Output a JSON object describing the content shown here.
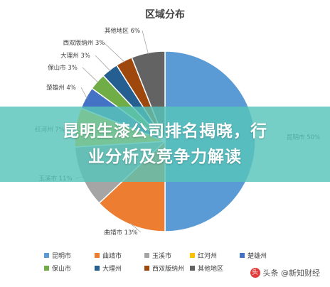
{
  "chart_data": {
    "type": "pie",
    "title": "区域分布",
    "slices": [
      {
        "name": "昆明市",
        "label": "昆明市 50%",
        "value": 50,
        "color": "#5b9bd5"
      },
      {
        "name": "曲靖市",
        "label": "曲靖市 13%",
        "value": 13,
        "color": "#ed7d31"
      },
      {
        "name": "玉溪市",
        "label": "玉溪市 11%",
        "value": 11,
        "color": "#a5a5a5"
      },
      {
        "name": "红河州",
        "label": "红河州 7%",
        "value": 7,
        "color": "#ffc000"
      },
      {
        "name": "楚雄州",
        "label": "楚雄州 4%",
        "value": 4,
        "color": "#4472c4"
      },
      {
        "name": "保山市",
        "label": "保山市 3%",
        "value": 3,
        "color": "#70ad47"
      },
      {
        "name": "大理州",
        "label": "大理州 3%",
        "value": 3,
        "color": "#255e91"
      },
      {
        "name": "西双版纳州",
        "label": "西双版纳州 3%",
        "value": 3,
        "color": "#9e480e"
      },
      {
        "name": "其他地区",
        "label": "其他地区 6%",
        "value": 6,
        "color": "#636363"
      }
    ],
    "legend_position": "bottom",
    "legend": [
      "昆明市",
      "曲靖市",
      "玉溪市",
      "红河州",
      "楚雄州",
      "保山市",
      "大理州",
      "西双版纳州",
      "其他地区"
    ]
  },
  "overlay": {
    "line1": "昆明生漆公司排名揭晓，行",
    "line2": "业分析及竞争力解读"
  },
  "watermark": {
    "icon": "头",
    "text": "头条 @新知财经"
  }
}
